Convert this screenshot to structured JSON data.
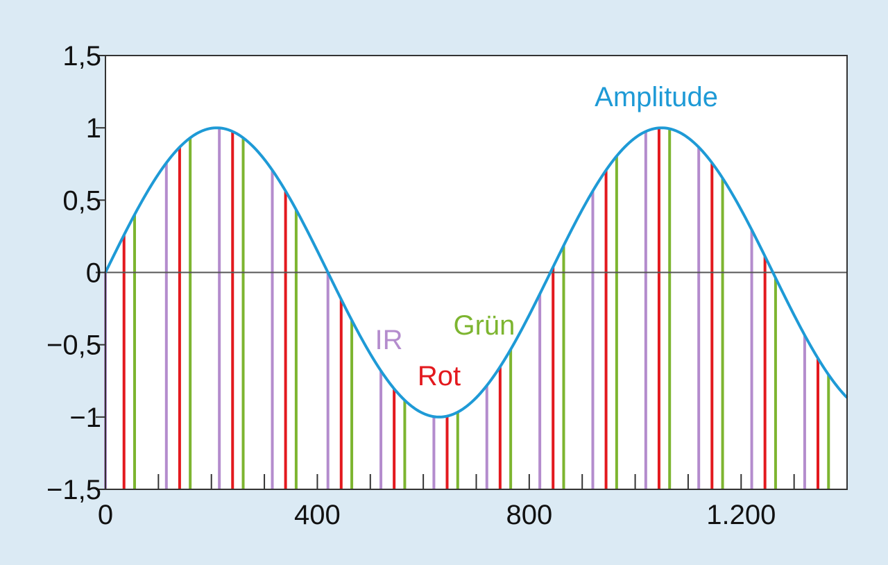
{
  "chart_data": {
    "type": "line",
    "title": "",
    "xlabel": "",
    "ylabel": "",
    "xlim": [
      0,
      1400
    ],
    "ylim": [
      -1.5,
      1.5
    ],
    "x_ticks": [
      {
        "value": 0,
        "label": "0"
      },
      {
        "value": 400,
        "label": "400"
      },
      {
        "value": 800,
        "label": "800"
      },
      {
        "value": 1200,
        "label": "1.200"
      }
    ],
    "y_ticks": [
      {
        "value": 1.5,
        "label": "1,5"
      },
      {
        "value": 1,
        "label": "1"
      },
      {
        "value": 0.5,
        "label": "0,5"
      },
      {
        "value": 0,
        "label": "0"
      },
      {
        "value": -0.5,
        "label": "−0,5"
      },
      {
        "value": -1,
        "label": "−1"
      },
      {
        "value": -1.5,
        "label": "−1,5"
      }
    ],
    "amplitude": {
      "name": "Amplitude",
      "color": "#1e9ad6",
      "function": "sine",
      "period": 840,
      "peak_x": 210,
      "amplitude": 1,
      "x_start": 0,
      "x_end": 1400
    },
    "samples": [
      {
        "name": "IR",
        "color": "#b48ccd",
        "x": [
          0,
          115,
          215,
          315,
          420,
          520,
          620,
          720,
          820,
          920,
          1020,
          1120,
          1220,
          1320
        ]
      },
      {
        "name": "Rot",
        "color": "#e3191e",
        "x": [
          35,
          140,
          240,
          340,
          445,
          545,
          645,
          745,
          845,
          945,
          1045,
          1145,
          1245,
          1345
        ]
      },
      {
        "name": "Grün",
        "color": "#7db530",
        "x": [
          55,
          160,
          260,
          360,
          465,
          565,
          665,
          765,
          865,
          965,
          1065,
          1165,
          1265,
          1365
        ]
      }
    ],
    "annotations": [
      {
        "text": "Amplitude",
        "color": "#1e9ad6",
        "x": 1040,
        "y": 1.15
      },
      {
        "text": "IR",
        "color": "#b48ccd",
        "x": 535,
        "y": -0.53
      },
      {
        "text": "Rot",
        "color": "#e3191e",
        "x": 630,
        "y": -0.78
      },
      {
        "text": "Grün",
        "color": "#7db530",
        "x": 715,
        "y": -0.43
      }
    ],
    "zero_line": true,
    "grid": false,
    "legend": "none"
  }
}
